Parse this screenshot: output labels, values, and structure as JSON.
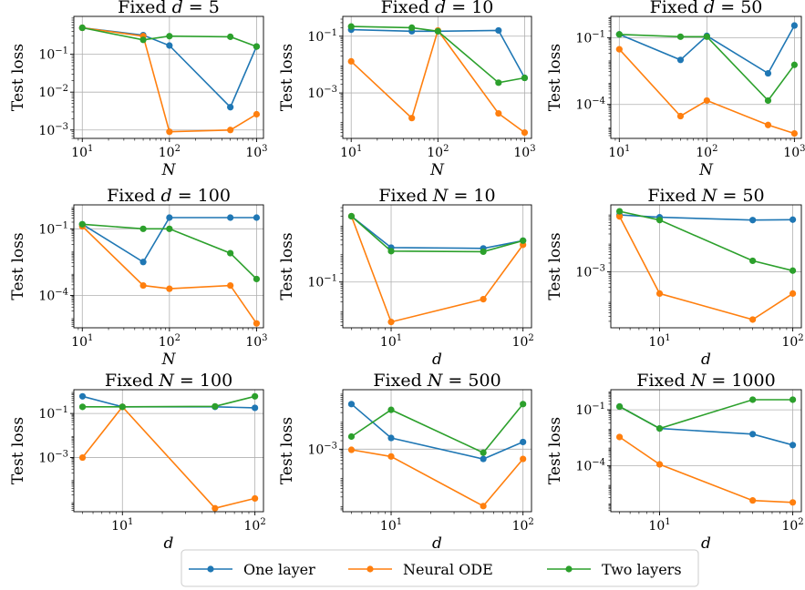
{
  "chart_data": [
    {
      "type": "line",
      "title": "Fixed d = 5",
      "xlabel": "N",
      "ylabel": "Test loss",
      "xscale": "log",
      "yscale": "log",
      "xlim": [
        8,
        1200
      ],
      "ylim": [
        0.0006,
        1.0
      ],
      "xticks": [
        10,
        100,
        1000
      ],
      "xticklabels": [
        "10^1",
        "10^2",
        "10^3"
      ],
      "yticks": [
        0.001,
        0.01,
        0.1
      ],
      "yticklabels": [
        "10^-3",
        "10^-2",
        "10^-1"
      ],
      "x": [
        10,
        50,
        100,
        500,
        1000
      ],
      "series": [
        {
          "name": "One layer",
          "values": [
            0.5,
            0.32,
            0.17,
            0.004,
            0.16
          ]
        },
        {
          "name": "Neural ODE",
          "values": [
            0.5,
            0.3,
            0.0009,
            0.001,
            0.0026
          ]
        },
        {
          "name": "Two layers",
          "values": [
            0.5,
            0.24,
            0.3,
            0.29,
            0.16
          ]
        }
      ]
    },
    {
      "type": "line",
      "title": "Fixed d = 10",
      "xlabel": "N",
      "ylabel": "Test loss",
      "xscale": "log",
      "yscale": "log",
      "xlim": [
        8,
        1200
      ],
      "ylim": [
        2.5e-05,
        0.5
      ],
      "xticks": [
        10,
        100,
        1000
      ],
      "xticklabels": [
        "10^1",
        "10^2",
        "10^3"
      ],
      "yticks": [
        0.001,
        0.1
      ],
      "yticklabels": [
        "10^-3",
        "10^-1"
      ],
      "x": [
        10,
        50,
        100,
        500,
        1000
      ],
      "series": [
        {
          "name": "One layer",
          "values": [
            0.17,
            0.15,
            0.15,
            0.16,
            0.0034
          ]
        },
        {
          "name": "Neural ODE",
          "values": [
            0.013,
            0.00013,
            0.16,
            0.00019,
            4e-05
          ]
        },
        {
          "name": "Two layers",
          "values": [
            0.22,
            0.2,
            0.15,
            0.0023,
            0.0034
          ]
        }
      ]
    },
    {
      "type": "line",
      "title": "Fixed d = 50",
      "xlabel": "N",
      "ylabel": "Test loss",
      "xscale": "log",
      "yscale": "log",
      "xlim": [
        8,
        1200
      ],
      "ylim": [
        3e-06,
        0.9
      ],
      "xticks": [
        10,
        100,
        1000
      ],
      "xticklabels": [
        "10^1",
        "10^2",
        "10^3"
      ],
      "yticks": [
        0.0001,
        0.1
      ],
      "yticklabels": [
        "10^-4",
        "10^-1"
      ],
      "x": [
        10,
        50,
        100,
        500,
        1000
      ],
      "series": [
        {
          "name": "One layer",
          "values": [
            0.14,
            0.01,
            0.12,
            0.0025,
            0.35
          ]
        },
        {
          "name": "Neural ODE",
          "values": [
            0.03,
            3e-05,
            0.00015,
            1.2e-05,
            5e-06
          ]
        },
        {
          "name": "Two layers",
          "values": [
            0.14,
            0.11,
            0.11,
            0.00015,
            0.006
          ]
        }
      ]
    },
    {
      "type": "line",
      "title": "Fixed d = 100",
      "xlabel": "N",
      "ylabel": "Test loss",
      "xscale": "log",
      "yscale": "log",
      "xlim": [
        8,
        1200
      ],
      "ylim": [
        3.5e-06,
        1.2
      ],
      "xticks": [
        10,
        100,
        1000
      ],
      "xticklabels": [
        "10^1",
        "10^2",
        "10^3"
      ],
      "yticks": [
        0.0001,
        0.1
      ],
      "yticklabels": [
        "10^-4",
        "10^-1"
      ],
      "x": [
        10,
        50,
        100,
        500,
        1000
      ],
      "series": [
        {
          "name": "One layer",
          "values": [
            0.16,
            0.0032,
            0.32,
            0.32,
            0.32
          ]
        },
        {
          "name": "Neural ODE",
          "values": [
            0.13,
            0.00028,
            0.0002,
            0.00028,
            5.5e-06
          ]
        },
        {
          "name": "Two layers",
          "values": [
            0.16,
            0.1,
            0.1,
            0.008,
            0.00055
          ]
        }
      ]
    },
    {
      "type": "line",
      "title": "Fixed N = 10",
      "xlabel": "d",
      "ylabel": "Test loss",
      "xscale": "log",
      "yscale": "log",
      "xlim": [
        4.3,
        116
      ],
      "ylim": [
        0.0025,
        50
      ],
      "xticks": [
        10,
        100
      ],
      "xticklabels": [
        "10^1",
        "10^2"
      ],
      "yticks": [
        0.1
      ],
      "yticklabels": [
        "10^-1"
      ],
      "x": [
        5,
        10,
        50,
        100
      ],
      "series": [
        {
          "name": "One layer",
          "values": [
            20,
            1.6,
            1.5,
            2.8
          ]
        },
        {
          "name": "Neural ODE",
          "values": [
            20,
            0.004,
            0.025,
            2.0
          ]
        },
        {
          "name": "Two layers",
          "values": [
            20,
            1.2,
            1.15,
            2.8
          ]
        }
      ]
    },
    {
      "type": "line",
      "title": "Fixed N = 50",
      "xlabel": "d",
      "ylabel": "Test loss",
      "xscale": "log",
      "yscale": "log",
      "xlim": [
        4.3,
        116
      ],
      "ylim": [
        1.2e-05,
        0.2
      ],
      "xticks": [
        10,
        100
      ],
      "xticklabels": [
        "10^1",
        "10^2"
      ],
      "yticks": [
        0.001
      ],
      "yticklabels": [
        "10^-3"
      ],
      "x": [
        5,
        10,
        50,
        100
      ],
      "series": [
        {
          "name": "One layer",
          "values": [
            0.09,
            0.075,
            0.06,
            0.062
          ]
        },
        {
          "name": "Neural ODE",
          "values": [
            0.08,
            0.00018,
            2.3e-05,
            0.00018
          ]
        },
        {
          "name": "Two layers",
          "values": [
            0.12,
            0.06,
            0.0024,
            0.0011
          ]
        }
      ]
    },
    {
      "type": "line",
      "title": "Fixed N = 100",
      "xlabel": "d",
      "ylabel": "Test loss",
      "xscale": "log",
      "yscale": "log",
      "xlim": [
        4.3,
        116
      ],
      "ylim": [
        3.5e-06,
        1.2
      ],
      "xticks": [
        10,
        100
      ],
      "xticklabels": [
        "10^1",
        "10^2"
      ],
      "yticks": [
        0.001,
        0.1
      ],
      "yticklabels": [
        "10^-3",
        "10^-1"
      ],
      "x": [
        5,
        10,
        50,
        100
      ],
      "series": [
        {
          "name": "One layer",
          "values": [
            0.6,
            0.2,
            0.2,
            0.18
          ]
        },
        {
          "name": "Neural ODE",
          "values": [
            0.001,
            0.2,
            5e-06,
            1.4e-05
          ]
        },
        {
          "name": "Two layers",
          "values": [
            0.2,
            0.2,
            0.21,
            0.6
          ]
        }
      ]
    },
    {
      "type": "line",
      "title": "Fixed N = 500",
      "xlabel": "d",
      "ylabel": "Test loss",
      "xscale": "log",
      "yscale": "log",
      "xlim": [
        4.3,
        116
      ],
      "ylim": [
        6e-06,
        0.13
      ],
      "xticks": [
        10,
        100
      ],
      "xticklabels": [
        "10^1",
        "10^2"
      ],
      "yticks": [
        0.001
      ],
      "yticklabels": [
        "10^-3"
      ],
      "x": [
        5,
        10,
        50,
        100
      ],
      "series": [
        {
          "name": "One layer",
          "values": [
            0.04,
            0.0025,
            0.00045,
            0.0018
          ]
        },
        {
          "name": "Neural ODE",
          "values": [
            0.00095,
            0.00055,
            9.5e-06,
            0.00045
          ]
        },
        {
          "name": "Two layers",
          "values": [
            0.0028,
            0.025,
            0.00075,
            0.04
          ]
        }
      ]
    },
    {
      "type": "line",
      "title": "Fixed N = 1000",
      "xlabel": "d",
      "ylabel": "Test loss",
      "xscale": "log",
      "yscale": "log",
      "xlim": [
        4.3,
        116
      ],
      "ylim": [
        3.5e-07,
        1.2
      ],
      "xticks": [
        10,
        100
      ],
      "xticklabels": [
        "10^1",
        "10^2"
      ],
      "yticks": [
        0.0001,
        0.1
      ],
      "yticklabels": [
        "10^-4",
        "10^-1"
      ],
      "x": [
        5,
        10,
        50,
        100
      ],
      "series": [
        {
          "name": "One layer",
          "values": [
            0.15,
            0.01,
            0.005,
            0.0013
          ]
        },
        {
          "name": "Neural ODE",
          "values": [
            0.0035,
            0.00012,
            1.4e-06,
            1.1e-06
          ]
        },
        {
          "name": "Two layers",
          "values": [
            0.15,
            0.01,
            0.35,
            0.35
          ]
        }
      ]
    }
  ],
  "legend": {
    "position": "bottom-center",
    "entries": [
      {
        "label": "One layer",
        "color": "#1f77b4"
      },
      {
        "label": "Neural ODE",
        "color": "#ff7f0e"
      },
      {
        "label": "Two layers",
        "color": "#2ca02c"
      }
    ]
  },
  "colors": {
    "One layer": "#1f77b4",
    "Neural ODE": "#ff7f0e",
    "Two layers": "#2ca02c",
    "grid": "#b0b0b0",
    "frame": "#000000"
  }
}
